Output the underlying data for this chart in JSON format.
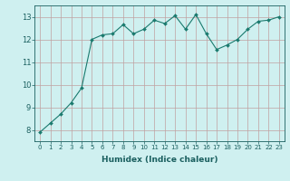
{
  "x": [
    0,
    1,
    2,
    3,
    4,
    5,
    6,
    7,
    8,
    9,
    10,
    11,
    12,
    13,
    14,
    15,
    16,
    17,
    18,
    19,
    20,
    21,
    22,
    23
  ],
  "y": [
    7.9,
    8.3,
    8.7,
    9.2,
    9.85,
    12.0,
    12.2,
    12.25,
    12.65,
    12.25,
    12.45,
    12.85,
    12.7,
    13.05,
    12.45,
    13.1,
    12.25,
    11.55,
    11.75,
    12.0,
    12.45,
    12.8,
    12.85,
    13.0
  ],
  "line_color": "#1a7a6e",
  "marker": "D",
  "marker_size": 2.0,
  "bg_color": "#cff0f0",
  "grid_color": "#c0a0a0",
  "xlabel": "Humidex (Indice chaleur)",
  "xlim": [
    -0.5,
    23.5
  ],
  "ylim": [
    7.5,
    13.5
  ],
  "yticks": [
    8,
    9,
    10,
    11,
    12,
    13
  ],
  "xticks": [
    0,
    1,
    2,
    3,
    4,
    5,
    6,
    7,
    8,
    9,
    10,
    11,
    12,
    13,
    14,
    15,
    16,
    17,
    18,
    19,
    20,
    21,
    22,
    23
  ],
  "tick_color": "#1a5f5f",
  "label_color": "#1a5f5f",
  "spine_color": "#1a5f5f",
  "xlabel_fontsize": 6.5,
  "xtick_fontsize": 5.0,
  "ytick_fontsize": 6.0
}
